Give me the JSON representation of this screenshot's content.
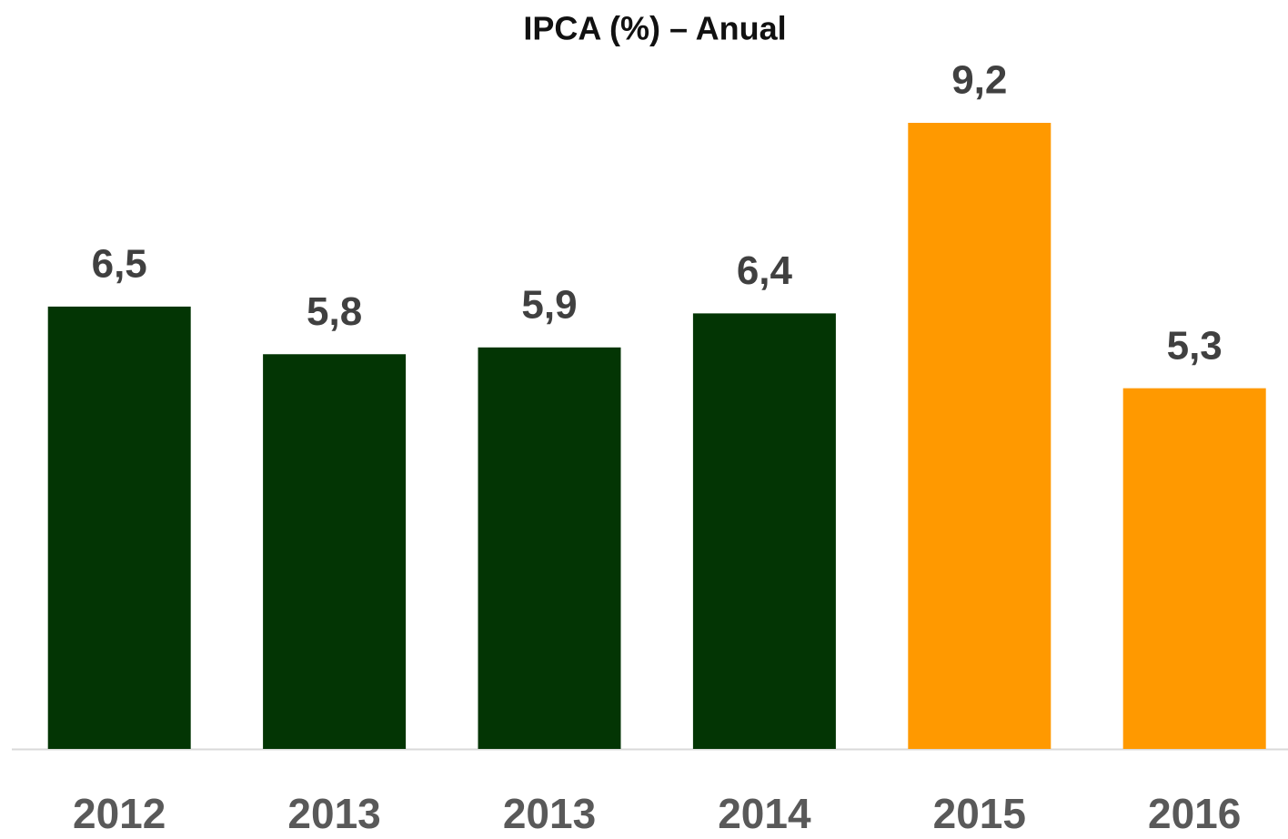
{
  "chart_data": {
    "type": "bar",
    "title": "IPCA (%) – Anual",
    "categories": [
      "2012",
      "2013",
      "2013",
      "2014",
      "2015",
      "2016"
    ],
    "values": [
      6.5,
      5.8,
      5.9,
      6.4,
      9.2,
      5.3
    ],
    "value_labels": [
      "6,5",
      "5,8",
      "5,9",
      "6,4",
      "9,2",
      "5,3"
    ],
    "colors": [
      "#033504",
      "#033504",
      "#033504",
      "#033504",
      "#ff9900",
      "#ff9900"
    ]
  }
}
